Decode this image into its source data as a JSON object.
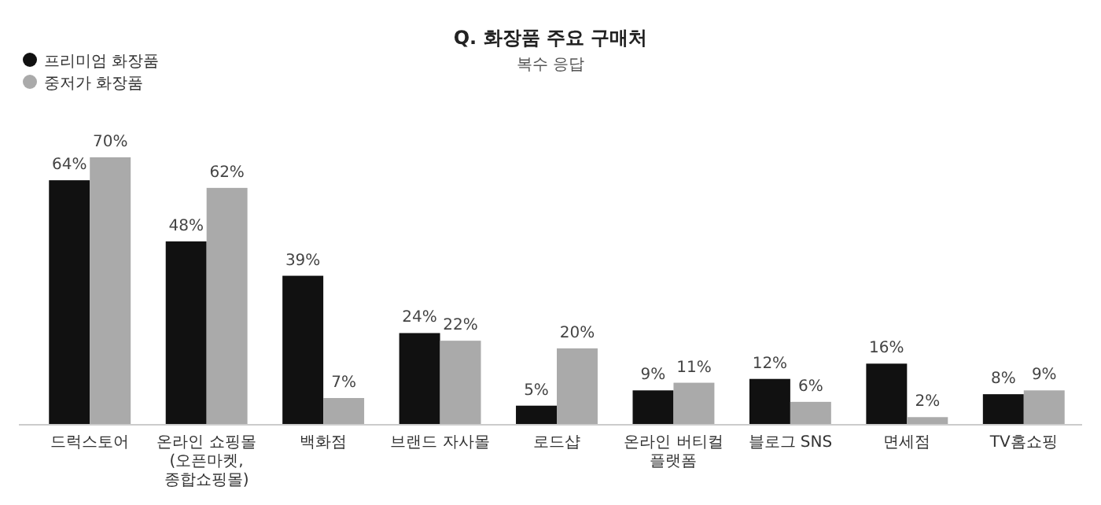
{
  "chart_data": {
    "type": "bar",
    "title": "Q. 화장품 주요 구매처",
    "subtitle": "복수 응답",
    "categories": [
      "드럭스토어",
      "온라인 쇼핑몰\n(오픈마켓, 종합쇼핑몰)",
      "백화점",
      "브랜드 자사몰",
      "로드샵",
      "온라인 버티컬 플랫폼",
      "블로그 SNS",
      "면세점",
      "TV홈쇼핑"
    ],
    "series": [
      {
        "name": "프리미엄 화장품",
        "color": "#111111",
        "values": [
          64,
          48,
          39,
          24,
          5,
          9,
          12,
          16,
          8
        ],
        "value_labels": [
          "64%",
          "48%",
          "39%",
          "24%",
          "5%",
          "9%",
          "12%",
          "16%",
          "8%"
        ]
      },
      {
        "name": "중저가 화장품",
        "color": "#aaaaaa",
        "values": [
          70,
          62,
          7,
          22,
          20,
          11,
          6,
          2,
          9
        ],
        "value_labels": [
          "70%",
          "62%",
          "7%",
          "22%",
          "20%",
          "11%",
          "6%",
          "2%",
          "9%"
        ]
      }
    ],
    "legend": "top left",
    "grid": false
  }
}
